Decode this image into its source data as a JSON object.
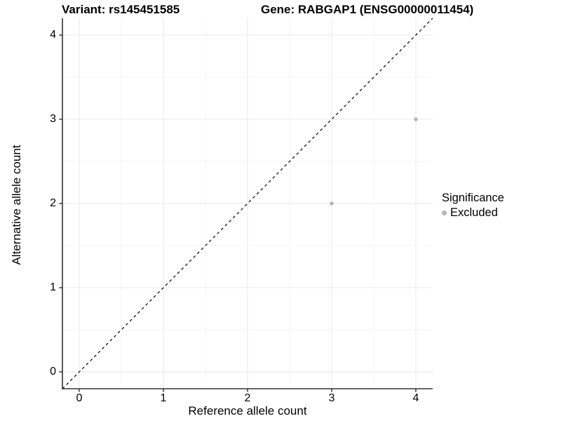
{
  "title": {
    "left": "Variant: rs145451585",
    "right": "Gene: RABGAP1 (ENSG00000011454)"
  },
  "axes": {
    "x_label": "Reference allele count",
    "y_label": "Alternative allele count"
  },
  "legend": {
    "title": "Significance",
    "items": [
      {
        "label": "Excluded",
        "color": "#b5b5b5"
      }
    ],
    "position": "right"
  },
  "colors": {
    "background": "#ffffff",
    "grid_major": "#e9e9e9",
    "grid_minor": "#f4f4f4",
    "axis_line": "#333333",
    "tick_mark": "#333333",
    "point": "#b5b5b5",
    "reference_line": "#000000",
    "text": "#000000"
  },
  "chart_data": {
    "type": "scatter",
    "title": "Variant: rs145451585 | Gene: RABGAP1 (ENSG00000011454)",
    "xlabel": "Reference allele count",
    "ylabel": "Alternative allele count",
    "xlim": [
      -0.2,
      4.2
    ],
    "ylim": [
      -0.2,
      4.2
    ],
    "x_ticks": [
      0,
      1,
      2,
      3,
      4
    ],
    "y_ticks": [
      0,
      1,
      2,
      3,
      4
    ],
    "grid": "major and minor (0.5 steps), light gray, on white background",
    "series": [
      {
        "name": "Excluded",
        "color": "#b5b5b5",
        "points": [
          [
            3,
            2
          ],
          [
            4,
            3
          ]
        ]
      }
    ],
    "reference_line": {
      "type": "identity",
      "equation": "y = x",
      "style": "dashed",
      "color": "#000000"
    },
    "legend_position": "right"
  }
}
